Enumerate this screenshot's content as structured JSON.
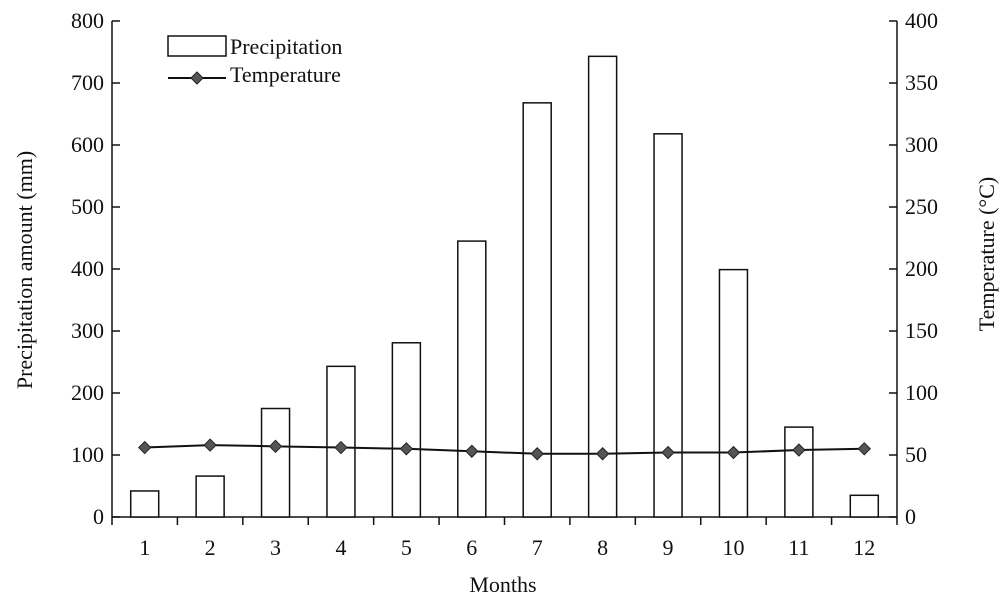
{
  "chart_data": {
    "type": "bar",
    "categories": [
      "1",
      "2",
      "3",
      "4",
      "5",
      "6",
      "7",
      "8",
      "9",
      "10",
      "11",
      "12"
    ],
    "series": [
      {
        "name": "Precipitation",
        "type": "bar",
        "axis": "left",
        "values": [
          42,
          66,
          175,
          243,
          281,
          445,
          668,
          743,
          618,
          399,
          145,
          35
        ]
      },
      {
        "name": "Temperature",
        "type": "line",
        "axis": "right",
        "values": [
          56,
          58,
          57,
          56,
          55,
          53,
          51,
          51,
          52,
          52,
          54,
          55
        ]
      }
    ],
    "xlabel": "Months",
    "ylabel_left": "Precipitation amount (mm)",
    "ylabel_right": "Temperature (°C)",
    "ylim_left": [
      0,
      800
    ],
    "ylim_right": [
      0,
      400
    ],
    "yticks_left": [
      "0",
      "100",
      "200",
      "300",
      "400",
      "500",
      "600",
      "700",
      "800"
    ],
    "yticks_right": [
      "0",
      "50",
      "100",
      "150",
      "200",
      "250",
      "300",
      "350",
      "400"
    ],
    "legend_position": "top-left",
    "grid": false
  }
}
